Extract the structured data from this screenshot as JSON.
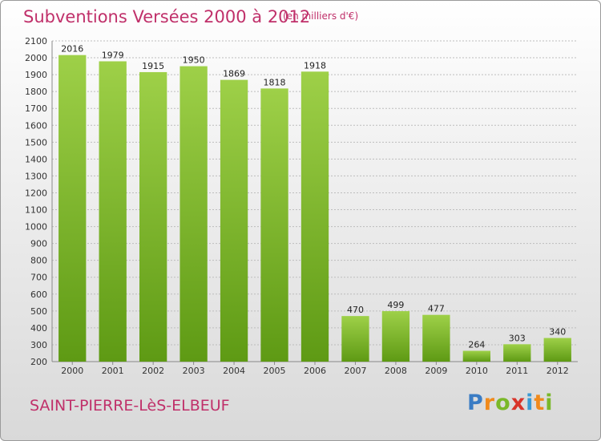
{
  "title": "Subventions Versées 2000 à 2012",
  "unit_note": "(en milliers d'€)",
  "commune": "SAINT-PIERRE-LèS-ELBEUF",
  "logo": {
    "letters": [
      "P",
      "r",
      "o",
      "x",
      "i",
      "t",
      "i"
    ],
    "colors": [
      "#3a7cc4",
      "#f08a1c",
      "#7ab829",
      "#d8342a",
      "#3a9ad4",
      "#f08a1c",
      "#7ab829"
    ]
  },
  "colors": {
    "bar_light": "#9ed048",
    "bar_dark": "#5e9a14",
    "grid": "#bdbdbd"
  },
  "chart_data": {
    "type": "bar",
    "title": "Subventions Versées 2000 à 2012",
    "subtitle": "(en milliers d'€)",
    "categories": [
      "2000",
      "2001",
      "2002",
      "2003",
      "2004",
      "2005",
      "2006",
      "2007",
      "2008",
      "2009",
      "2010",
      "2011",
      "2012"
    ],
    "values": [
      2016,
      1979,
      1915,
      1950,
      1869,
      1818,
      1918,
      470,
      499,
      477,
      264,
      303,
      340
    ],
    "ylim": [
      200,
      2100
    ],
    "yticks": [
      200,
      300,
      400,
      500,
      600,
      700,
      800,
      900,
      1000,
      1100,
      1200,
      1300,
      1400,
      1500,
      1600,
      1700,
      1800,
      1900,
      2000,
      2100
    ],
    "grid": true,
    "data_labels": true
  }
}
